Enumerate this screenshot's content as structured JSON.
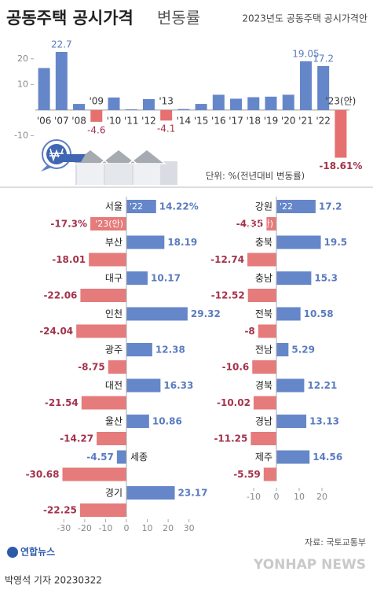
{
  "title": {
    "bold": "공동주택 공시가격",
    "light": "변동률"
  },
  "subtitle": "2023년도 공동주택 공시가격안",
  "unit": "단위: %(전년대비 변동률)",
  "source": "자료: 국토교통부",
  "byline": "박영석 기자 20230322",
  "logo": "연합뉴스",
  "watermark": "YONHAP NEWS",
  "chart_data": [
    {
      "type": "bar",
      "categories": [
        "'06",
        "'07",
        "'08",
        "'09",
        "'10",
        "'11",
        "'12",
        "'13",
        "'14",
        "'15",
        "'16",
        "'17",
        "'18",
        "'19",
        "'20",
        "'21",
        "'22",
        "'23(안)"
      ],
      "values": [
        16.4,
        22.7,
        2.4,
        -4.6,
        4.9,
        0.3,
        4.3,
        -4.1,
        0.4,
        2.4,
        5.97,
        4.44,
        5.02,
        5.23,
        5.98,
        19.05,
        17.2,
        -18.61
      ],
      "value_labels": [
        null,
        "22.7",
        null,
        "-4.6",
        null,
        null,
        null,
        "-4.1",
        null,
        null,
        null,
        null,
        null,
        null,
        null,
        "19.05",
        "17.2",
        "-18.61%"
      ],
      "color": "#6586c9",
      "negative_color": "#e5706f",
      "ylim": [
        -20,
        27
      ],
      "yticks": [
        20,
        10,
        -10
      ]
    },
    {
      "type": "hbar",
      "categories": [
        "서울",
        "부산",
        "대구",
        "인천",
        "광주",
        "대전",
        "울산",
        "세종",
        "경기"
      ],
      "series": [
        {
          "name": "'22",
          "color": "#6586c9",
          "values": [
            14.22,
            18.19,
            10.17,
            29.32,
            12.38,
            16.33,
            10.86,
            -4.57,
            23.17
          ],
          "value_labels": [
            "14.22%",
            "18.19",
            "10.17",
            "29.32",
            "12.38",
            "16.33",
            "10.86",
            "-4.57",
            "23.17"
          ]
        },
        {
          "name": "'23(안)",
          "color": "#e57b7b",
          "values": [
            -17.3,
            -18.01,
            -22.06,
            -24.04,
            -8.75,
            -21.54,
            -14.27,
            -30.68,
            -22.25
          ],
          "value_labels": [
            "-17.3%",
            "-18.01",
            "-22.06",
            "-24.04",
            "-8.75",
            "-21.54",
            "-14.27",
            "-30.68",
            "-22.25"
          ]
        }
      ],
      "xlim": [
        -32,
        32
      ],
      "xticks": [
        -30,
        -20,
        -10,
        0,
        10,
        20,
        30
      ]
    },
    {
      "type": "hbar",
      "categories": [
        "강원",
        "충북",
        "충남",
        "전북",
        "전남",
        "경북",
        "경남",
        "제주"
      ],
      "series": [
        {
          "name": "'22",
          "color": "#6586c9",
          "values": [
            17.2,
            19.5,
            15.3,
            10.58,
            5.29,
            12.21,
            13.13,
            14.56
          ],
          "value_labels": [
            "17.2",
            "19.5",
            "15.3",
            "10.58",
            "5.29",
            "12.21",
            "13.13",
            "14.56"
          ]
        },
        {
          "name": "'23(안)",
          "color": "#e57b7b",
          "values": [
            -4.35,
            -12.74,
            -12.52,
            -8,
            -10.6,
            -10.02,
            -11.25,
            -5.59
          ],
          "value_labels": [
            "-4.35",
            "-12.74",
            "-12.52",
            "-8",
            "-10.6",
            "-10.02",
            "-11.25",
            "-5.59"
          ]
        }
      ],
      "xlim": [
        -14,
        22
      ],
      "xticks": [
        -10,
        0,
        10,
        20
      ]
    }
  ]
}
